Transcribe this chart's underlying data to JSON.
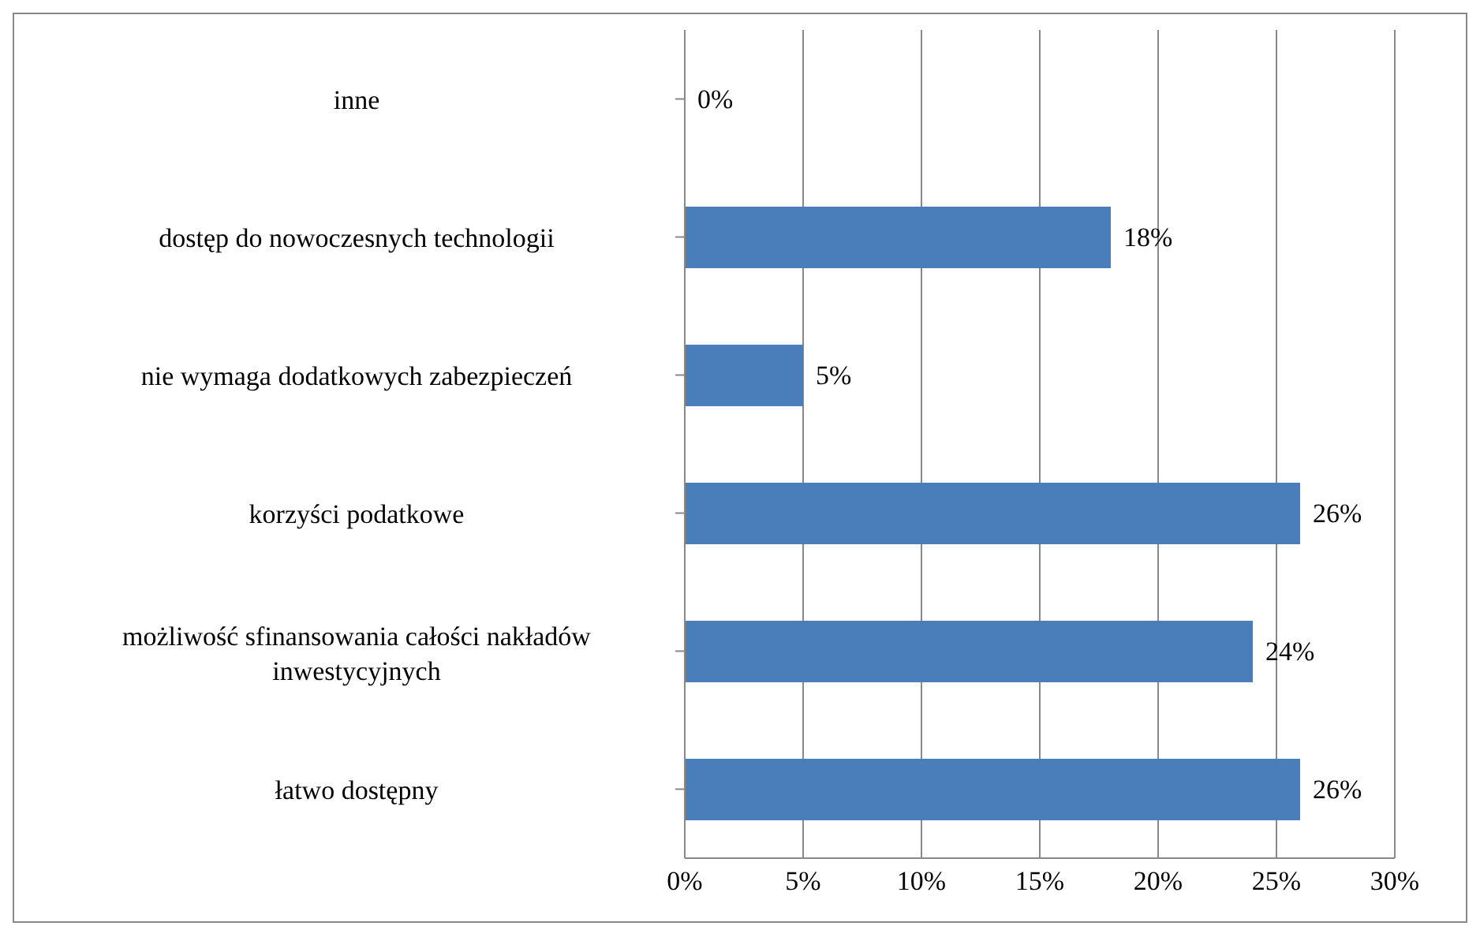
{
  "chart_data": {
    "type": "bar",
    "orientation": "horizontal",
    "categories": [
      "inne",
      "dostęp do nowoczesnych technologii",
      "nie wymaga dodatkowych zabezpieczeń",
      "korzyści podatkowe",
      "możliwość sfinansowania całości nakładów inwestycyjnych",
      "łatwo dostępny"
    ],
    "values": [
      0,
      18,
      5,
      26,
      24,
      26
    ],
    "value_labels": [
      "0%",
      "18%",
      "5%",
      "26%",
      "24%",
      "26%"
    ],
    "color": "#4a7ebb",
    "xlim": [
      0,
      30
    ],
    "xticks": [
      {
        "value": 0,
        "label": "0%"
      },
      {
        "value": 5,
        "label": "5%"
      },
      {
        "value": 10,
        "label": "10%"
      },
      {
        "value": 15,
        "label": "15%"
      },
      {
        "value": 20,
        "label": "20%"
      },
      {
        "value": 25,
        "label": "25%"
      },
      {
        "value": 30,
        "label": "30%"
      }
    ],
    "grid": "x",
    "legend": false
  }
}
